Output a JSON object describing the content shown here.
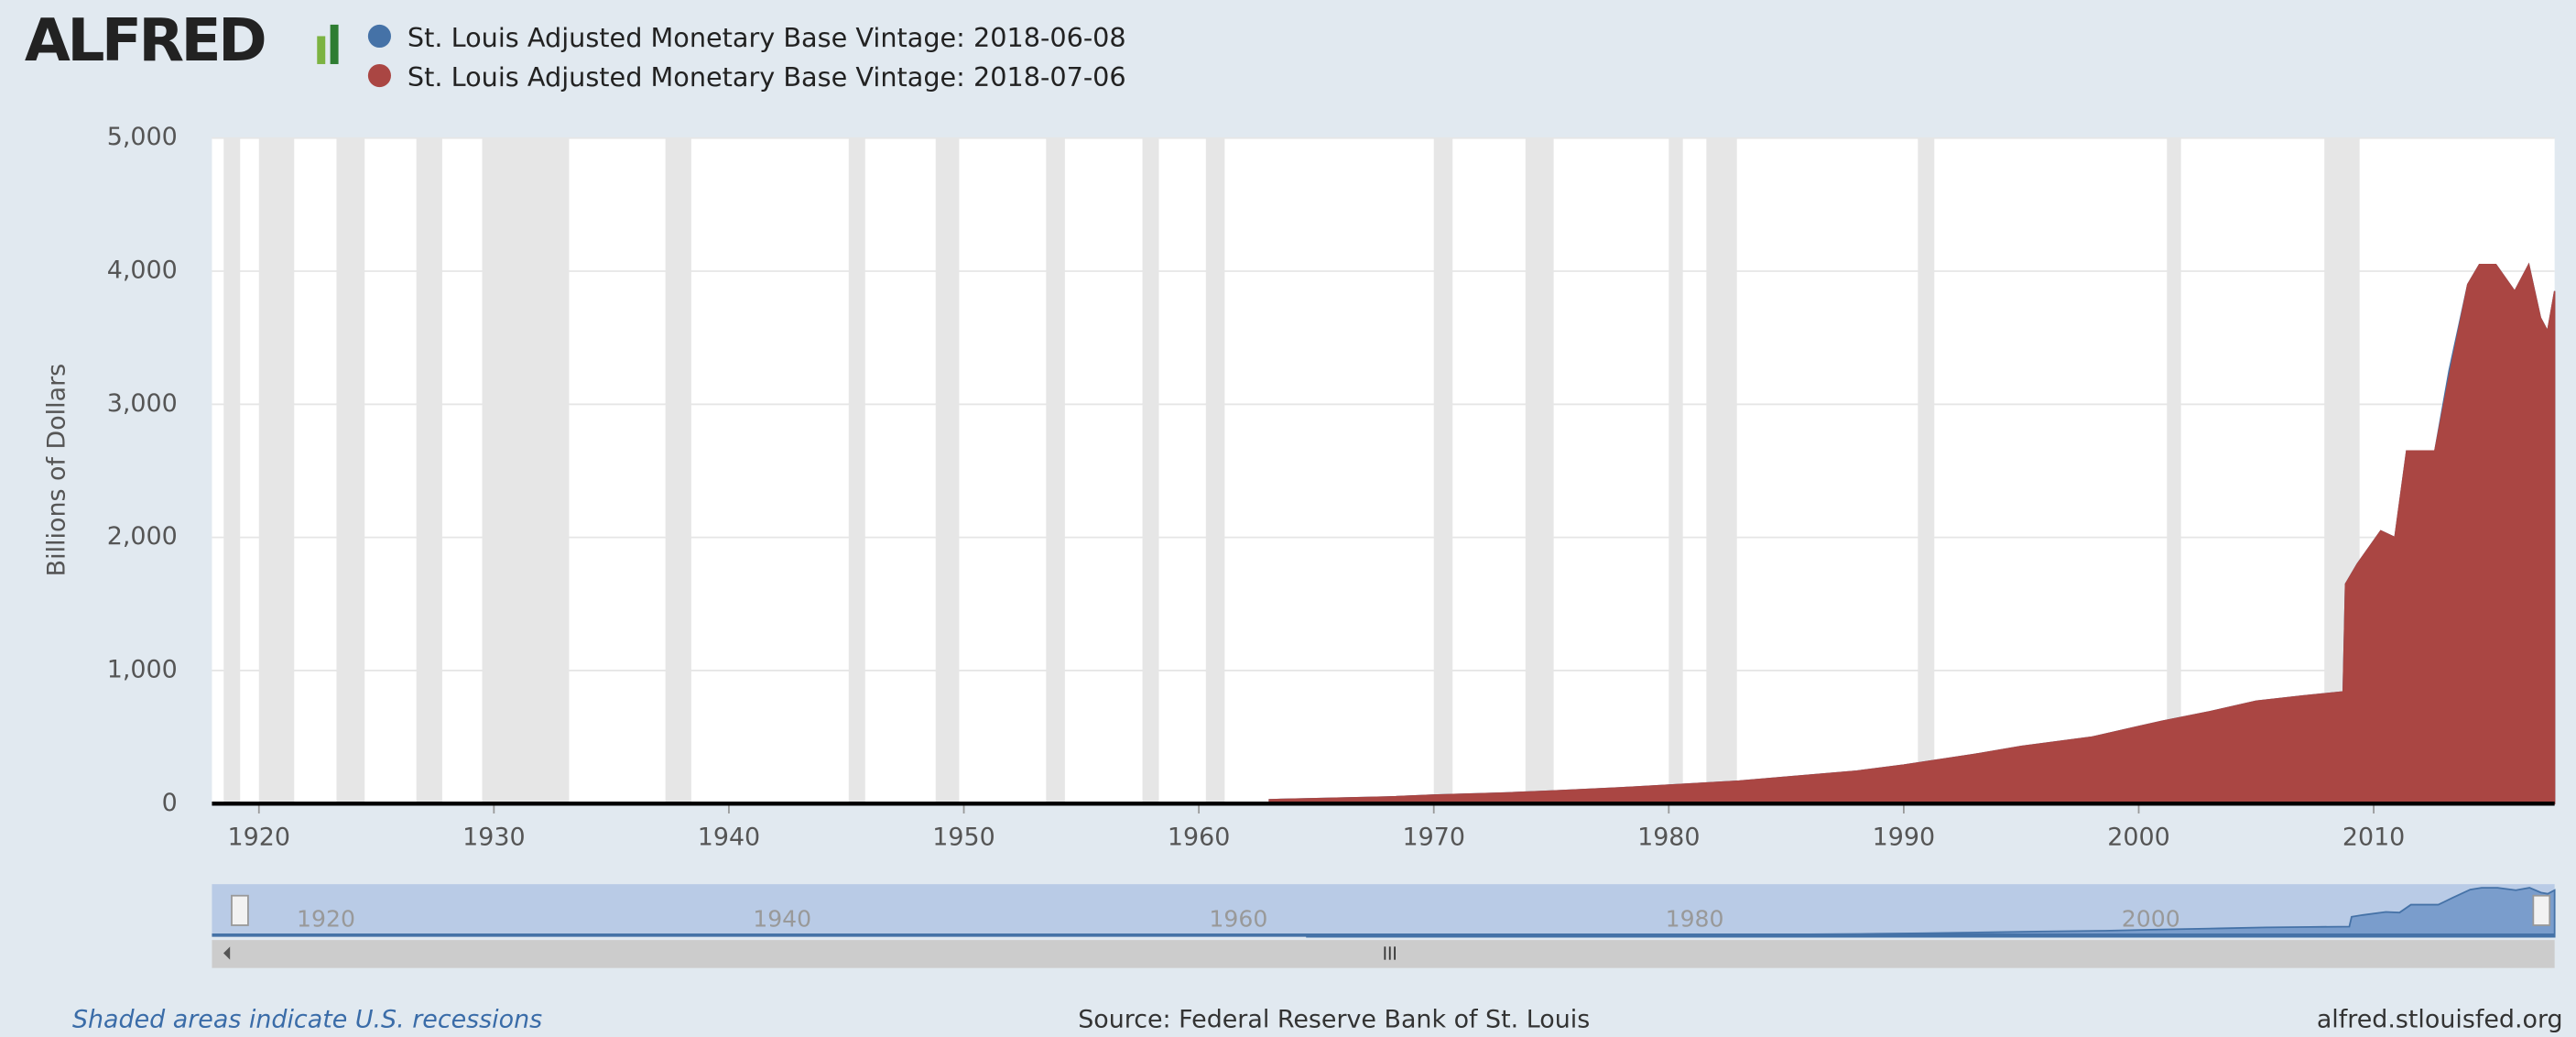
{
  "chart_data": {
    "type": "area",
    "logo": "ALFRED",
    "ylabel": "Billions of Dollars",
    "xlim": [
      1918,
      2017.7
    ],
    "xticks": [
      1920,
      1930,
      1940,
      1950,
      1960,
      1970,
      1980,
      1990,
      2000,
      2010
    ],
    "ylim": [
      0,
      5000
    ],
    "yticks": [
      0,
      {
        "value": 1000,
        "label": "1,000"
      },
      {
        "value": 2000,
        "label": "2,000"
      },
      {
        "value": 3000,
        "label": "3,000"
      },
      {
        "value": 4000,
        "label": "4,000"
      },
      {
        "value": 5000,
        "label": "5,000"
      }
    ],
    "grid": true,
    "x": [
      1963,
      1965,
      1968,
      1970,
      1973,
      1975,
      1978,
      1980,
      1983,
      1985,
      1988,
      1990,
      1993,
      1995,
      1998,
      2000,
      2001,
      2003,
      2005,
      2007,
      2008.7,
      2008.8,
      2009.3,
      2010.3,
      2010.9,
      2011.4,
      2012.6,
      2013.2,
      2014,
      2014.5,
      2015.2,
      2016,
      2016.6,
      2017.1,
      2017.4,
      2017.7
    ],
    "series": [
      {
        "name": "St. Louis Adjusted Monetary Base Vintage: 2018-06-08",
        "color": "#4572a7",
        "values": [
          30,
          38,
          50,
          65,
          80,
          95,
          120,
          140,
          170,
          200,
          245,
          290,
          370,
          430,
          500,
          580,
          620,
          690,
          770,
          810,
          840,
          1650,
          1800,
          2050,
          2000,
          2650,
          2650,
          3250,
          3900,
          4050,
          4050,
          3850,
          4050,
          3650,
          3550,
          3850
        ]
      },
      {
        "name": "St. Louis Adjusted Monetary Base Vintage: 2018-07-06",
        "color": "#aa4643",
        "values": [
          30,
          38,
          50,
          65,
          80,
          95,
          120,
          140,
          170,
          200,
          245,
          290,
          370,
          430,
          500,
          580,
          620,
          690,
          770,
          810,
          840,
          1650,
          1800,
          2050,
          2000,
          2650,
          2650,
          3200,
          3900,
          4050,
          4050,
          3850,
          4050,
          3650,
          3550,
          3850
        ]
      }
    ],
    "recessions": [
      [
        1918.5,
        1919.2
      ],
      [
        1920.0,
        1921.5
      ],
      [
        1923.3,
        1924.5
      ],
      [
        1926.7,
        1927.8
      ],
      [
        1929.5,
        1933.2
      ],
      [
        1937.3,
        1938.4
      ],
      [
        1945.1,
        1945.8
      ],
      [
        1948.8,
        1949.8
      ],
      [
        1953.5,
        1954.3
      ],
      [
        1957.6,
        1958.3
      ],
      [
        1960.3,
        1961.1
      ],
      [
        1970.0,
        1970.8
      ],
      [
        1973.9,
        1975.1
      ],
      [
        1980.0,
        1980.6
      ],
      [
        1981.6,
        1982.9
      ],
      [
        1990.6,
        1991.3
      ],
      [
        2001.2,
        2001.8
      ],
      [
        2007.9,
        2009.4
      ]
    ],
    "navigator_xlim": [
      1915,
      2017.7
    ],
    "navigator_xticks": [
      1920,
      1940,
      1960,
      1980,
      2000
    ],
    "recession_note": "Shaded areas indicate U.S. recessions",
    "source": "Source: Federal Reserve Bank of St. Louis",
    "site": "alfred.stlouisfed.org"
  }
}
